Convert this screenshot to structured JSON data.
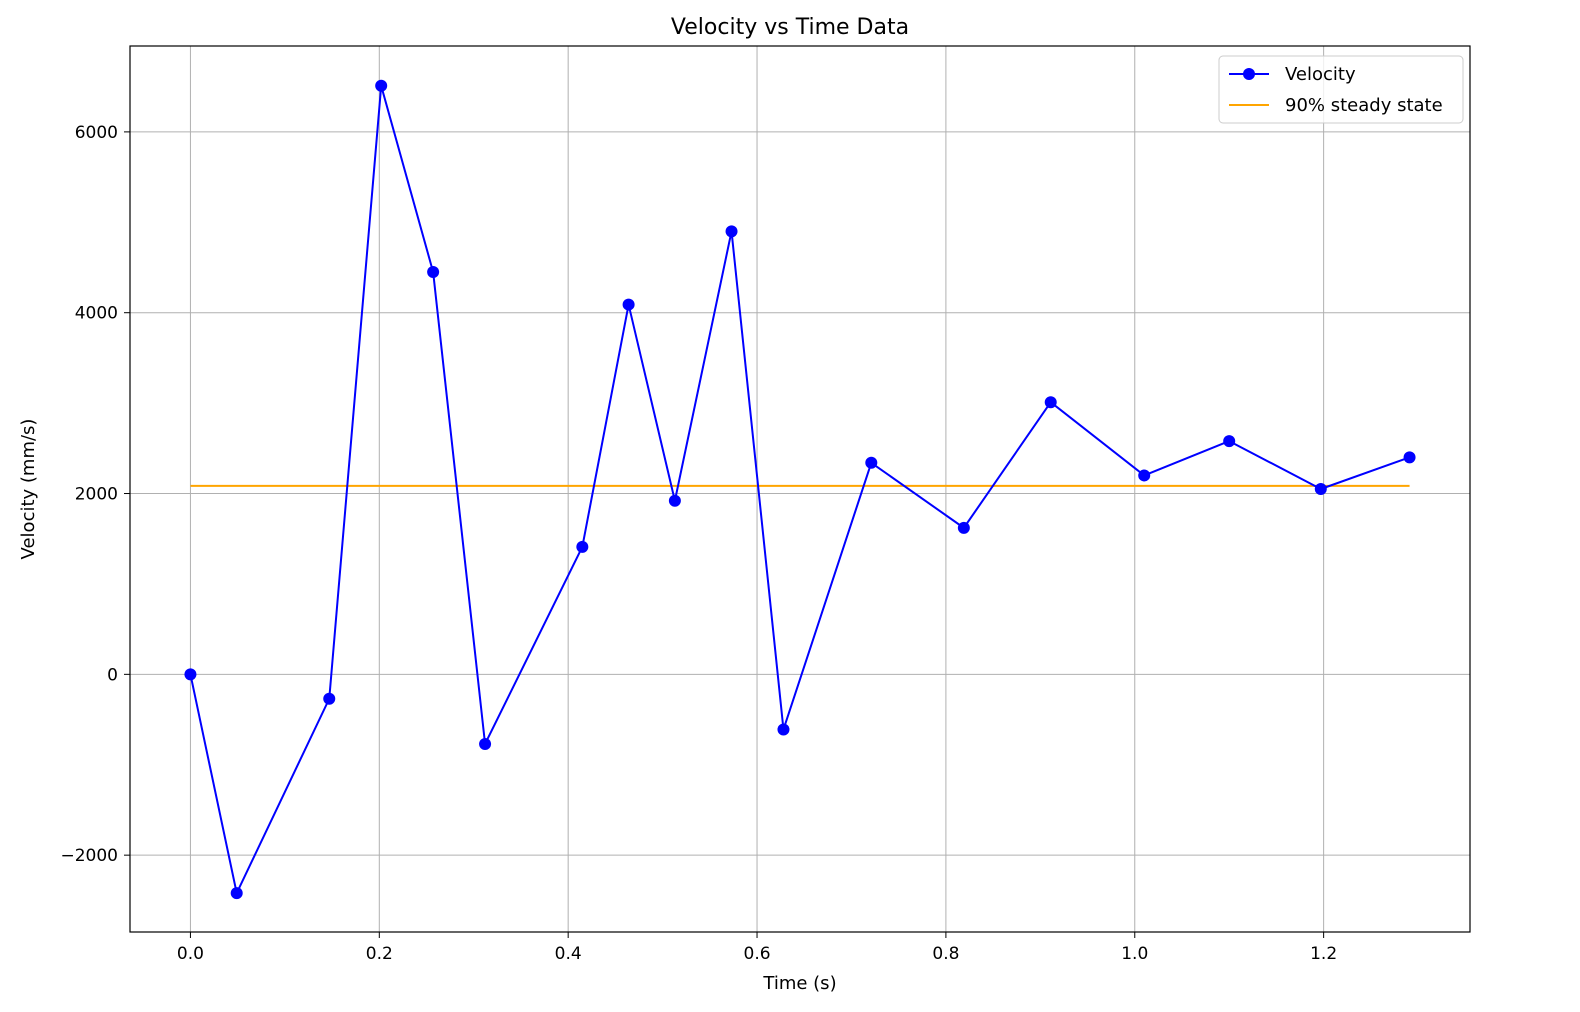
{
  "chart_data": {
    "type": "line",
    "title": "Velocity vs Time Data",
    "xlabel": "Time (s)",
    "ylabel": "Velocity (mm/s)",
    "xlim": [
      -0.064,
      1.355
    ],
    "ylim": [
      -2850,
      6950
    ],
    "xticks": [
      0.0,
      0.2,
      0.4,
      0.6,
      0.8,
      1.0,
      1.2
    ],
    "xtick_labels": [
      "0.0",
      "0.2",
      "0.4",
      "0.6",
      "0.8",
      "1.0",
      "1.2"
    ],
    "yticks": [
      -2000,
      0,
      2000,
      4000,
      6000
    ],
    "ytick_labels": [
      "−2000",
      "0",
      "2000",
      "4000",
      "6000"
    ],
    "grid": true,
    "legend_position": "top-right",
    "series": [
      {
        "name": "Velocity",
        "color": "#0000ff",
        "marker": "circle",
        "x": [
          0.0,
          0.049,
          0.147,
          0.202,
          0.257,
          0.312,
          0.415,
          0.464,
          0.513,
          0.573,
          0.628,
          0.721,
          0.819,
          0.911,
          1.01,
          1.1,
          1.197,
          1.291
        ],
        "y": [
          0,
          -2420,
          -270,
          6510,
          4450,
          -770,
          1410,
          4090,
          1920,
          4900,
          -610,
          2340,
          1620,
          3010,
          2200,
          2580,
          2050,
          2400
        ]
      },
      {
        "name": "90% steady state",
        "color": "#ffa500",
        "marker": "none",
        "x": [
          0.0,
          1.291
        ],
        "y": [
          2085,
          2085
        ]
      }
    ]
  }
}
